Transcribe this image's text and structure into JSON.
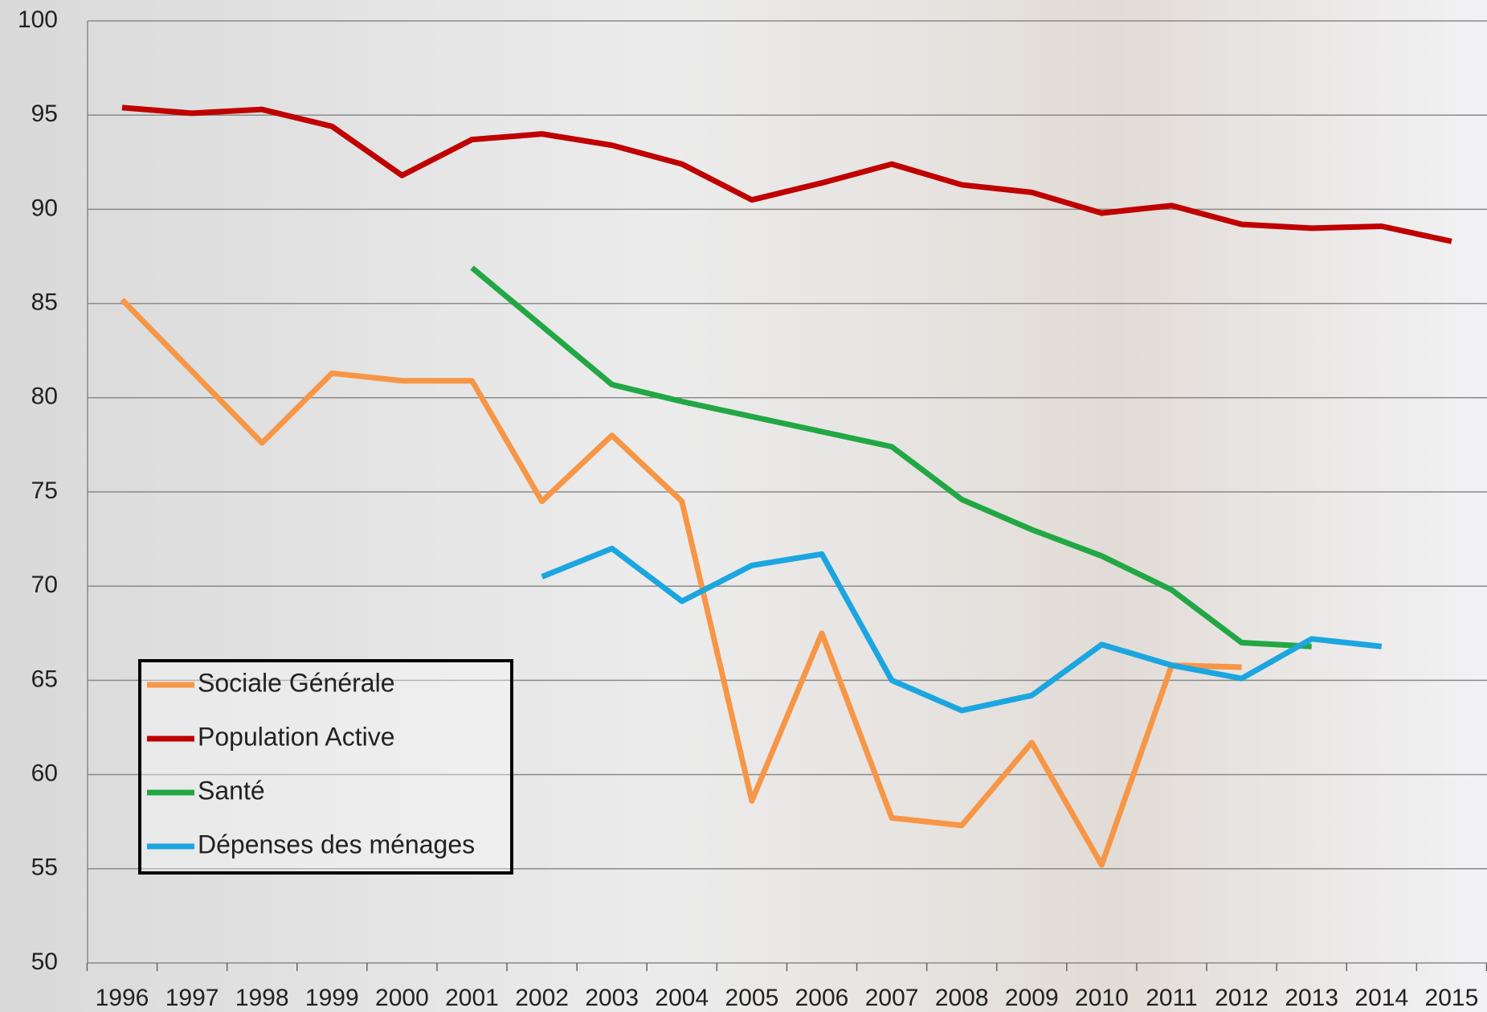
{
  "chart_data": {
    "type": "line",
    "categories": [
      "1996",
      "1997",
      "1998",
      "1999",
      "2000",
      "2001",
      "2002",
      "2003",
      "2004",
      "2005",
      "2006",
      "2007",
      "2008",
      "2009",
      "2010",
      "2011",
      "2012",
      "2013",
      "2014",
      "2015"
    ],
    "series": [
      {
        "name": "Sociale Générale",
        "color": "#f79646",
        "values": [
          85.2,
          81.4,
          77.6,
          81.3,
          80.9,
          80.9,
          74.5,
          78.0,
          74.5,
          58.6,
          67.5,
          57.7,
          57.3,
          61.7,
          55.2,
          65.8,
          65.7,
          null,
          null,
          null
        ]
      },
      {
        "name": "Population Active",
        "color": "#c00000",
        "values": [
          95.4,
          95.1,
          95.3,
          94.4,
          91.8,
          93.7,
          94.0,
          93.4,
          92.4,
          90.5,
          91.4,
          92.4,
          91.3,
          90.9,
          89.8,
          90.2,
          89.2,
          89.0,
          89.1,
          88.3
        ]
      },
      {
        "name": "Santé",
        "color": "#22a745",
        "values": [
          null,
          null,
          null,
          null,
          null,
          86.9,
          83.8,
          80.7,
          79.8,
          79.0,
          78.2,
          77.4,
          74.6,
          73.0,
          71.6,
          69.8,
          67.0,
          66.8,
          null,
          null
        ]
      },
      {
        "name": "Dépenses des ménages",
        "color": "#1ba6e0",
        "values": [
          null,
          null,
          null,
          null,
          null,
          null,
          70.5,
          72.0,
          69.2,
          71.1,
          71.7,
          65.0,
          63.4,
          64.2,
          66.9,
          65.8,
          65.1,
          67.2,
          66.8,
          null
        ]
      }
    ],
    "ylim": [
      50,
      100
    ],
    "yticks": [
      50,
      55,
      60,
      65,
      70,
      75,
      80,
      85,
      90,
      95,
      100
    ],
    "grid": true,
    "legend": "lower left"
  }
}
